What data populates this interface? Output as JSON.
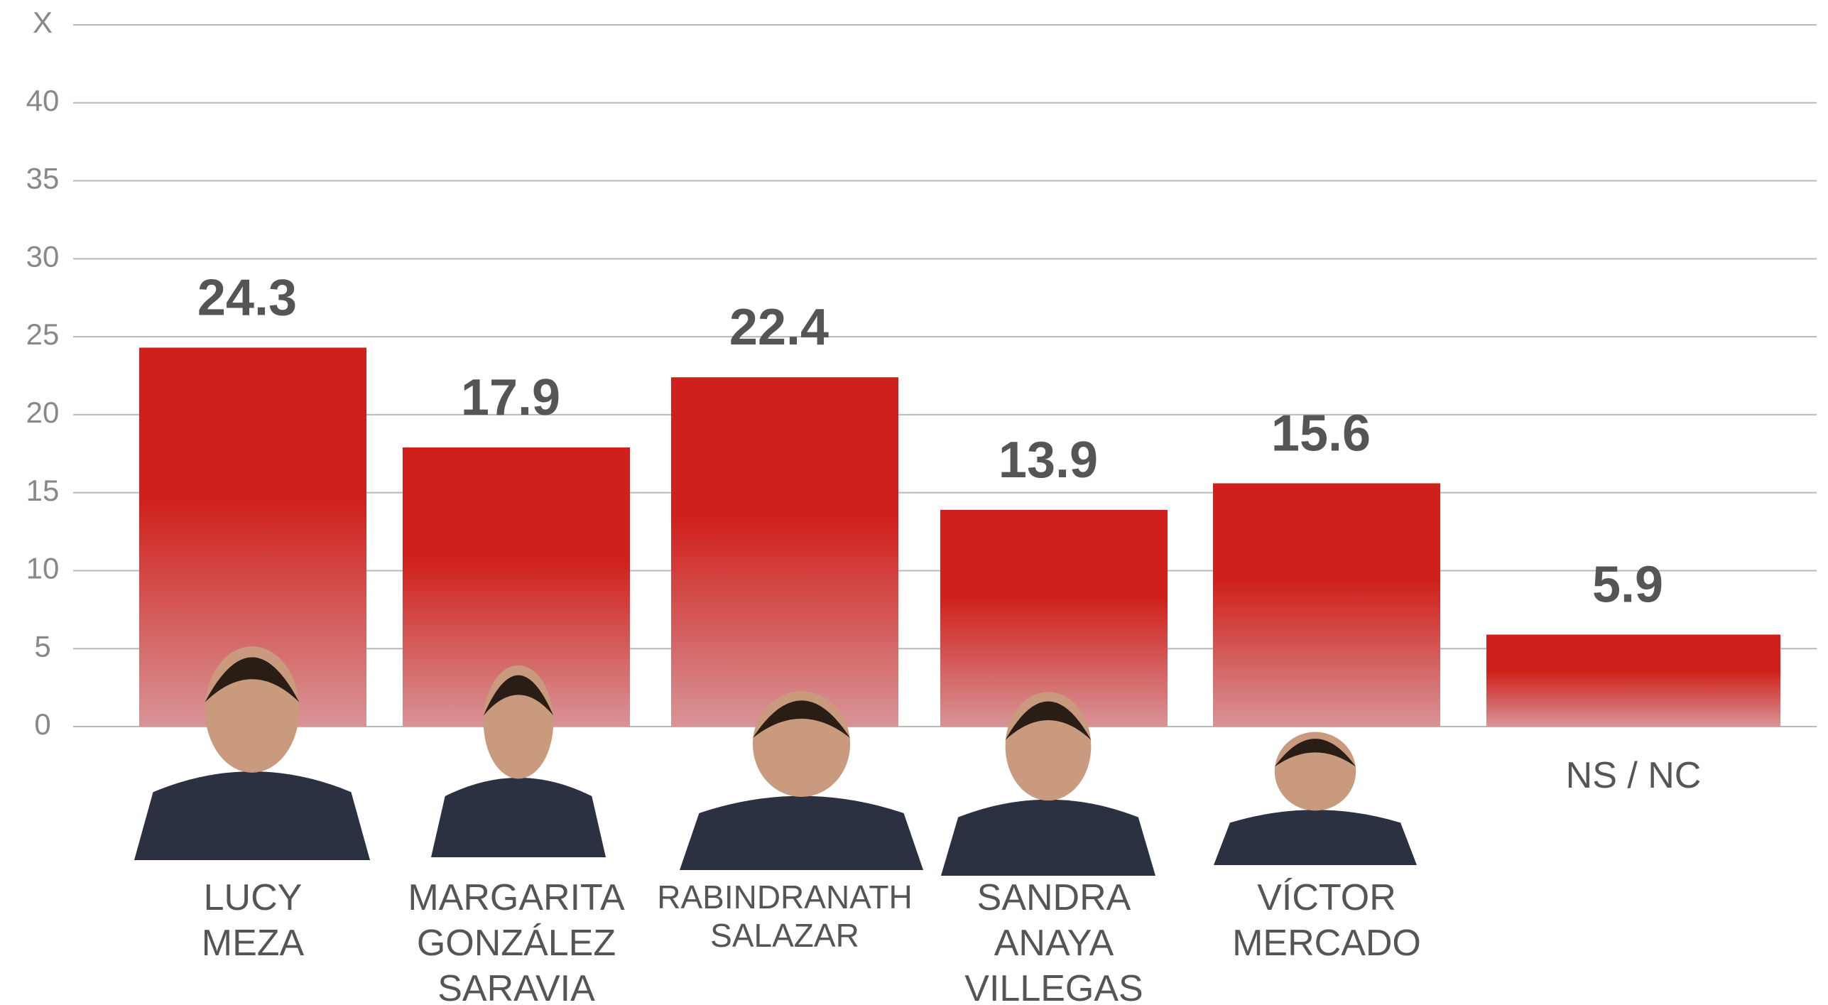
{
  "chart_data": {
    "type": "bar",
    "categories": [
      "LUCY\nMEZA",
      "MARGARITA\nGONZÁLEZ\nSARAVIA",
      "RABINDRANATH\nSALAZAR",
      "SANDRA\nANAYA\nVILLEGAS",
      "VÍCTOR\nMERCADO",
      "NS / NC"
    ],
    "values": [
      24.3,
      17.9,
      22.4,
      13.9,
      15.6,
      5.9
    ],
    "color": "#d0201b",
    "ylim": [
      0,
      45
    ],
    "yticks": [
      0,
      5,
      10,
      15,
      20,
      25,
      30,
      35,
      40,
      {
        "value": 45,
        "label": "X"
      }
    ],
    "grid": true
  }
}
